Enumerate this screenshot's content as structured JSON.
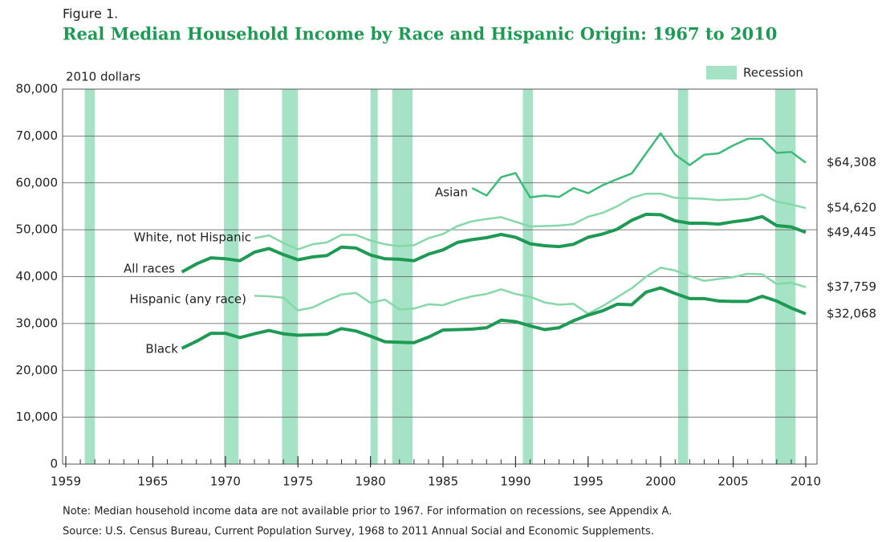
{
  "chart_data": {
    "type": "line",
    "figure_label": "Figure 1.",
    "title": "Real Median Household Income by Race and Hispanic Origin: 1967 to 2010",
    "y_axis_label": "2010 dollars",
    "recession_label": "Recession",
    "recession_color": "#a6e3c6",
    "recessions": [
      [
        1960.3,
        1961.0
      ],
      [
        1969.9,
        1970.9
      ],
      [
        1973.9,
        1975.0
      ],
      [
        1980.0,
        1980.5
      ],
      [
        1981.5,
        1982.9
      ],
      [
        1990.5,
        1991.2
      ],
      [
        2001.2,
        2001.9
      ],
      [
        2007.9,
        2009.3
      ]
    ],
    "x": [
      1967,
      1968,
      1969,
      1970,
      1971,
      1972,
      1973,
      1974,
      1975,
      1976,
      1977,
      1978,
      1979,
      1980,
      1981,
      1982,
      1983,
      1984,
      1985,
      1986,
      1987,
      1988,
      1989,
      1990,
      1991,
      1992,
      1993,
      1994,
      1995,
      1996,
      1997,
      1998,
      1999,
      2000,
      2001,
      2002,
      2003,
      2004,
      2005,
      2006,
      2007,
      2008,
      2009,
      2010
    ],
    "xlim": [
      1959,
      2010
    ],
    "xticks": [
      1959,
      1965,
      1970,
      1975,
      1980,
      1985,
      1990,
      1995,
      2000,
      2005,
      2010
    ],
    "ylim": [
      0,
      80000
    ],
    "yticks": [
      0,
      {
        "value": 10000,
        "label": "10,000"
      },
      {
        "value": 20000,
        "label": "20,000"
      },
      {
        "value": 30000,
        "label": "30,000"
      },
      {
        "value": 40000,
        "label": "40,000"
      },
      {
        "value": 50000,
        "label": "50,000"
      },
      {
        "value": 60000,
        "label": "60,000"
      },
      {
        "value": 70000,
        "label": "70,000"
      },
      {
        "value": 80000,
        "label": "80,000"
      }
    ],
    "grid": true,
    "series": [
      {
        "name": "Asian",
        "color": "#3dbb7a",
        "width": 2.5,
        "values": [
          null,
          null,
          null,
          null,
          null,
          null,
          null,
          null,
          null,
          null,
          null,
          null,
          null,
          null,
          null,
          null,
          null,
          null,
          null,
          null,
          58900,
          57300,
          61200,
          62100,
          56900,
          57300,
          57000,
          58900,
          57800,
          59500,
          60800,
          62000,
          66300,
          70600,
          66000,
          63800,
          66000,
          66300,
          68000,
          69400,
          69400,
          66400,
          66600,
          64308
        ],
        "value_labels": [
          null,
          null,
          null,
          null,
          null,
          null,
          null,
          null,
          null,
          null,
          null,
          null,
          null,
          null,
          null,
          null,
          null,
          null,
          null,
          null,
          null,
          null,
          null,
          null,
          null,
          null,
          null,
          null,
          null,
          null,
          null,
          null,
          null,
          null,
          null,
          null,
          null,
          null,
          null,
          null,
          null,
          null,
          null,
          "$64,308"
        ]
      },
      {
        "name": "White, not Hispanic",
        "color": "#86d8aa",
        "width": 2.5,
        "values": [
          null,
          null,
          null,
          null,
          null,
          48200,
          48800,
          47200,
          45800,
          46900,
          47300,
          48900,
          48900,
          47700,
          46900,
          46500,
          46700,
          48200,
          49100,
          50800,
          51800,
          52300,
          52700,
          51700,
          50700,
          50800,
          50900,
          51200,
          52800,
          53600,
          55000,
          56800,
          57700,
          57700,
          56800,
          56700,
          56600,
          56300,
          56500,
          56600,
          57500,
          56000,
          55400,
          54620
        ],
        "value_labels": [
          null,
          null,
          null,
          null,
          null,
          null,
          null,
          null,
          null,
          null,
          null,
          null,
          null,
          null,
          null,
          null,
          null,
          null,
          null,
          null,
          null,
          null,
          null,
          null,
          null,
          null,
          null,
          null,
          null,
          null,
          null,
          null,
          null,
          null,
          null,
          null,
          null,
          null,
          null,
          null,
          null,
          null,
          null,
          "$54,620"
        ]
      },
      {
        "name": "All races",
        "color": "#1f9a55",
        "width": 4,
        "values": [
          41000,
          42700,
          44000,
          43800,
          43400,
          45200,
          46000,
          44700,
          43600,
          44200,
          44500,
          46300,
          46100,
          44600,
          43800,
          43700,
          43400,
          44800,
          45700,
          47300,
          47900,
          48300,
          49000,
          48400,
          47000,
          46600,
          46400,
          46900,
          48400,
          49100,
          50100,
          52000,
          53300,
          53200,
          51900,
          51400,
          51400,
          51200,
          51700,
          52100,
          52800,
          50900,
          50600,
          49445
        ],
        "value_labels": [
          null,
          null,
          null,
          null,
          null,
          null,
          null,
          null,
          null,
          null,
          null,
          null,
          null,
          null,
          null,
          null,
          null,
          null,
          null,
          null,
          null,
          null,
          null,
          null,
          null,
          null,
          null,
          null,
          null,
          null,
          null,
          null,
          null,
          null,
          null,
          null,
          null,
          null,
          null,
          null,
          null,
          null,
          null,
          "$49,445"
        ]
      },
      {
        "name": "Hispanic (any race)",
        "color": "#86d8aa",
        "width": 2.5,
        "values": [
          null,
          null,
          null,
          null,
          null,
          35900,
          35800,
          35500,
          32800,
          33400,
          34900,
          36200,
          36500,
          34400,
          35100,
          33000,
          33200,
          34100,
          33900,
          35000,
          35800,
          36300,
          37300,
          36300,
          35700,
          34500,
          34000,
          34200,
          32100,
          33700,
          35600,
          37500,
          40000,
          41900,
          41300,
          40100,
          39100,
          39500,
          39900,
          40600,
          40500,
          38400,
          38700,
          37759
        ],
        "value_labels": [
          null,
          null,
          null,
          null,
          null,
          null,
          null,
          null,
          null,
          null,
          null,
          null,
          null,
          null,
          null,
          null,
          null,
          null,
          null,
          null,
          null,
          null,
          null,
          null,
          null,
          null,
          null,
          null,
          null,
          null,
          null,
          null,
          null,
          null,
          null,
          null,
          null,
          null,
          null,
          null,
          null,
          null,
          null,
          "$37,759"
        ]
      },
      {
        "name": "Black",
        "color": "#1f9a55",
        "width": 4,
        "values": [
          24700,
          26200,
          27900,
          27900,
          27000,
          27800,
          28500,
          27800,
          27500,
          27600,
          27700,
          28900,
          28400,
          27300,
          26100,
          26000,
          25900,
          27100,
          28600,
          28700,
          28800,
          29100,
          30700,
          30400,
          29500,
          28700,
          29100,
          30600,
          31800,
          32700,
          34100,
          34000,
          36700,
          37600,
          36400,
          35300,
          35300,
          34800,
          34700,
          34700,
          35800,
          34800,
          33300,
          32068
        ],
        "value_labels": [
          null,
          null,
          null,
          null,
          null,
          null,
          null,
          null,
          null,
          null,
          null,
          null,
          null,
          null,
          null,
          null,
          null,
          null,
          null,
          null,
          null,
          null,
          null,
          null,
          null,
          null,
          null,
          null,
          null,
          null,
          null,
          null,
          null,
          null,
          null,
          null,
          null,
          null,
          null,
          null,
          null,
          null,
          null,
          "$32,068"
        ]
      }
    ],
    "note": "Note: Median household income data are not available prior to 1967. For information on recessions, see Appendix A.",
    "source": "Source: U.S. Census Bureau, Current Population Survey, 1968 to 2011 Annual Social and Economic Supplements."
  }
}
